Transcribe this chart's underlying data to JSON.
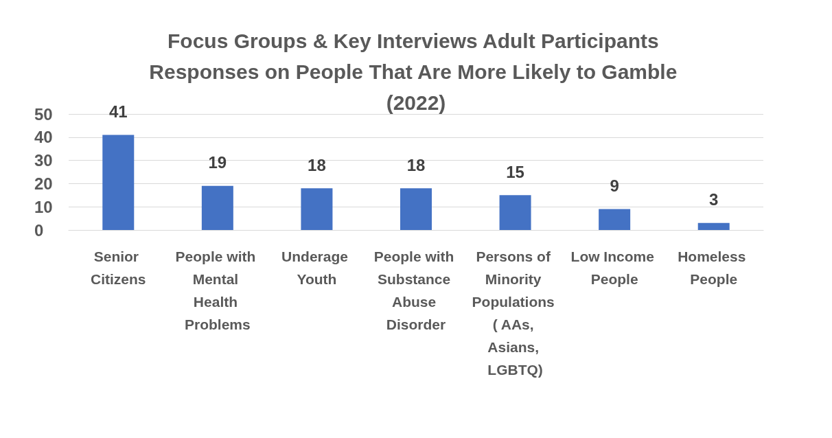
{
  "chart_data": {
    "type": "bar",
    "title": "Focus Groups & Key Interviews Adult Participants Responses on People That Are More Likely to Gamble (2022)",
    "categories": [
      "Senior Citizens",
      "People with Mental Health Problems",
      "Underage Youth",
      "People with Substance Abuse Disorder",
      "Persons of Minority Populations ( AAs, Asians, LGBTQ)",
      "Low Income People",
      "Homeless People"
    ],
    "values": [
      41,
      19,
      18,
      18,
      15,
      9,
      3
    ],
    "color": "#4472c4",
    "ylim": [
      0,
      50
    ],
    "yticks": [
      0,
      10,
      20,
      30,
      40,
      50
    ],
    "grid": "y",
    "data_labels": true
  }
}
